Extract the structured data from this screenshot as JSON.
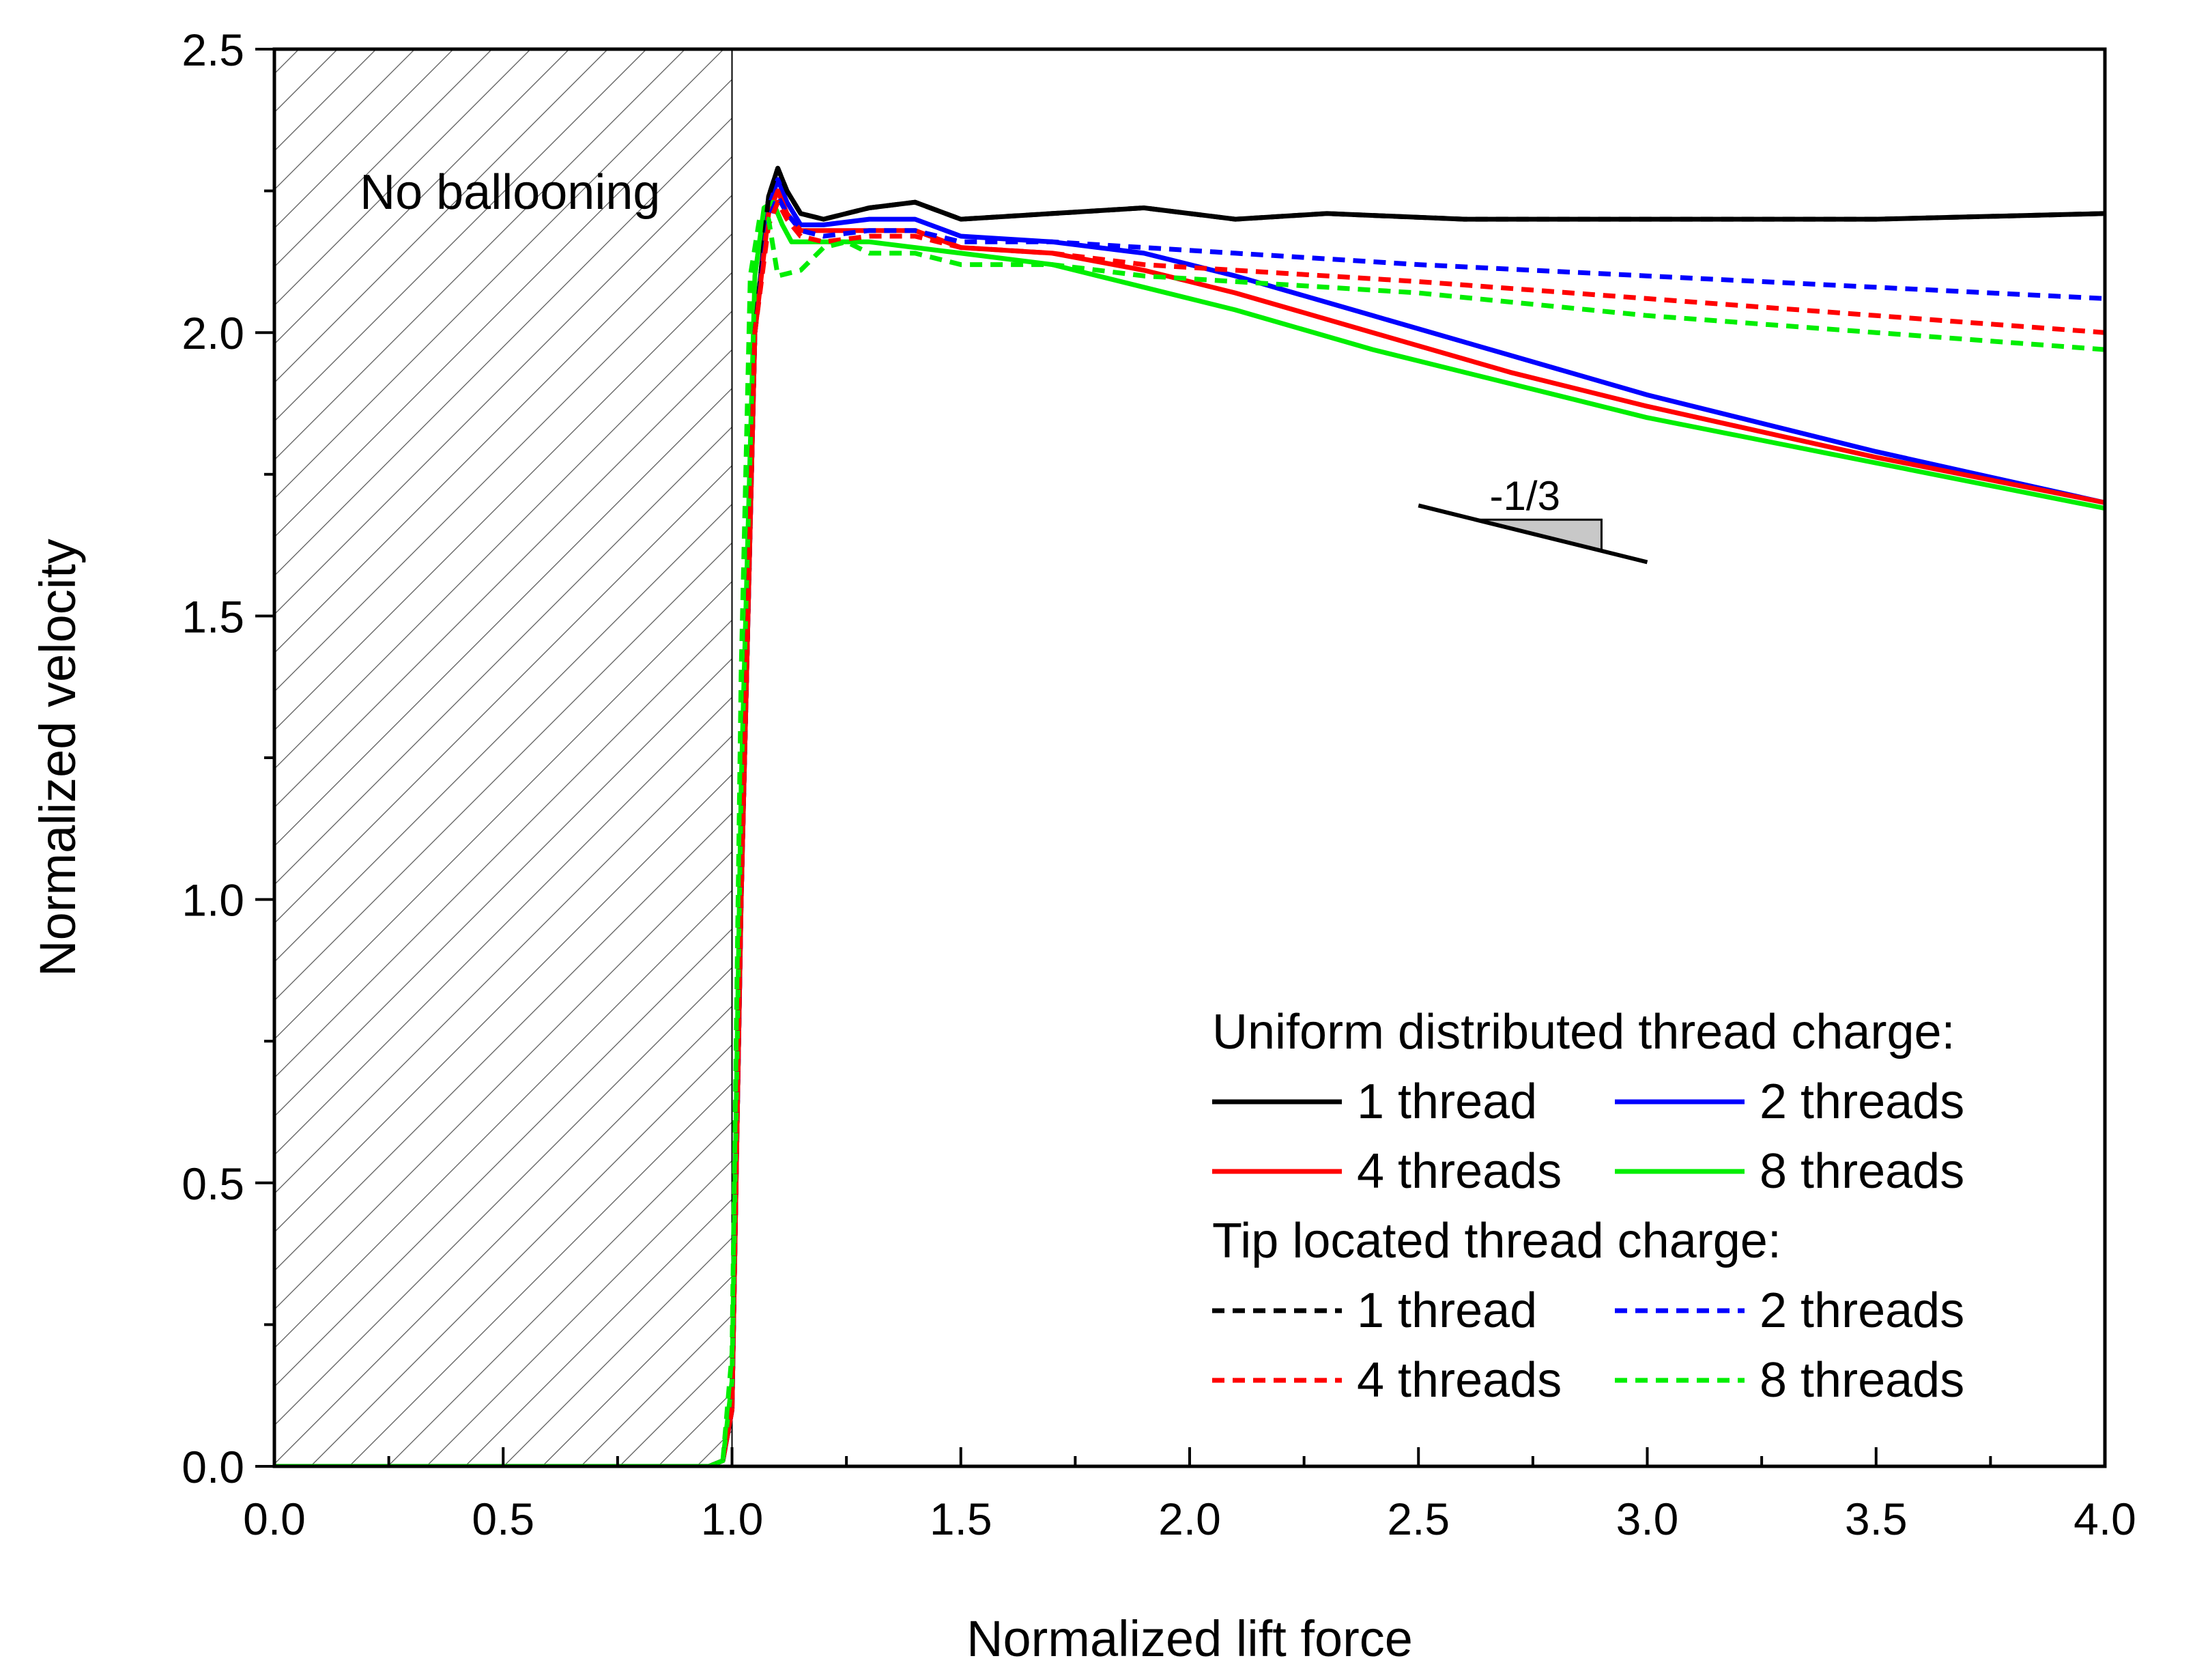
{
  "chart_data": {
    "type": "line",
    "title": "",
    "xlabel": "Normalized lift force",
    "ylabel": "Normalized velocity",
    "xlim": [
      0,
      4
    ],
    "ylim": [
      0,
      2.5
    ],
    "x_ticks": [
      0,
      0.5,
      1,
      1.5,
      2,
      2.5,
      3,
      3.5,
      4
    ],
    "x_tick_labels": [
      "0.0",
      "0.5",
      "1.0",
      "1.5",
      "2.0",
      "2.5",
      "3.0",
      "3.5",
      "4.0"
    ],
    "y_ticks": [
      0,
      0.5,
      1,
      1.5,
      2,
      2.5
    ],
    "y_tick_labels": [
      "0.0",
      "0.5",
      "1.0",
      "1.5",
      "2.0",
      "2.5"
    ],
    "grid": false,
    "shaded_region": {
      "x": [
        0,
        1
      ],
      "label": "No ballooning",
      "pattern": "diagonal hatch"
    },
    "slope_annotation": {
      "label": "-1/3",
      "x": [
        2.5,
        3.0
      ],
      "y": [
        1.695,
        1.595
      ],
      "triangle": {
        "x0": 2.62,
        "x1": 2.9,
        "y_top": 1.67
      }
    },
    "legend": {
      "position": "bottom-right",
      "groups": [
        {
          "title": "Uniform distributed thread charge:",
          "entries": [
            "1 thread",
            "2 threads",
            "4 threads",
            "8 threads"
          ]
        },
        {
          "title": "Tip located thread charge:",
          "entries": [
            "1 thread",
            "2 threads",
            "4 threads",
            "8 threads"
          ]
        }
      ]
    },
    "series": [
      {
        "name": "Uniform 1 thread",
        "group": "Uniform distributed thread charge",
        "color": "#000000",
        "dash": "solid",
        "x": [
          0,
          0.95,
          0.98,
          1.0,
          1.02,
          1.05,
          1.08,
          1.1,
          1.12,
          1.15,
          1.2,
          1.3,
          1.4,
          1.5,
          1.7,
          1.9,
          2.1,
          2.3,
          2.6,
          3.0,
          3.5,
          4.0
        ],
        "y": [
          0,
          0,
          0.01,
          0.1,
          1.0,
          2.0,
          2.24,
          2.29,
          2.25,
          2.21,
          2.2,
          2.22,
          2.23,
          2.2,
          2.21,
          2.22,
          2.2,
          2.21,
          2.2,
          2.2,
          2.2,
          2.21
        ]
      },
      {
        "name": "Uniform 2 threads",
        "group": "Uniform distributed thread charge",
        "color": "#0000ff",
        "dash": "solid",
        "x": [
          0,
          0.95,
          0.98,
          1.0,
          1.02,
          1.05,
          1.08,
          1.1,
          1.12,
          1.15,
          1.2,
          1.3,
          1.4,
          1.5,
          1.7,
          1.9,
          2.1,
          2.4,
          2.7,
          3.0,
          3.5,
          4.0
        ],
        "y": [
          0,
          0,
          0.01,
          0.1,
          1.0,
          2.0,
          2.22,
          2.27,
          2.23,
          2.19,
          2.19,
          2.2,
          2.2,
          2.17,
          2.16,
          2.14,
          2.1,
          2.03,
          1.96,
          1.89,
          1.79,
          1.7
        ]
      },
      {
        "name": "Uniform 4 threads",
        "group": "Uniform distributed thread charge",
        "color": "#ff0000",
        "dash": "solid",
        "x": [
          0,
          0.95,
          0.98,
          1.0,
          1.02,
          1.05,
          1.08,
          1.1,
          1.12,
          1.15,
          1.2,
          1.3,
          1.4,
          1.5,
          1.7,
          1.9,
          2.1,
          2.4,
          2.7,
          3.0,
          3.5,
          4.0
        ],
        "y": [
          0,
          0,
          0.01,
          0.1,
          1.0,
          2.0,
          2.21,
          2.25,
          2.21,
          2.18,
          2.18,
          2.18,
          2.18,
          2.15,
          2.14,
          2.11,
          2.07,
          2.0,
          1.93,
          1.87,
          1.78,
          1.7
        ]
      },
      {
        "name": "Uniform 8 threads",
        "group": "Uniform distributed thread charge",
        "color": "#00ee00",
        "dash": "solid",
        "x": [
          0,
          0.95,
          0.98,
          1.0,
          1.02,
          1.05,
          1.07,
          1.09,
          1.11,
          1.13,
          1.15,
          1.2,
          1.3,
          1.4,
          1.5,
          1.7,
          1.9,
          2.1,
          2.4,
          2.7,
          3.0,
          3.5,
          4.0
        ],
        "y": [
          0,
          0,
          0.01,
          0.15,
          1.2,
          2.1,
          2.22,
          2.23,
          2.19,
          2.16,
          2.16,
          2.16,
          2.16,
          2.15,
          2.14,
          2.12,
          2.08,
          2.04,
          1.97,
          1.91,
          1.85,
          1.77,
          1.69
        ]
      },
      {
        "name": "Tip 1 thread",
        "group": "Tip located thread charge",
        "color": "#000000",
        "dash": "dashed",
        "x": [
          0,
          0.95,
          0.98,
          1.0,
          1.02,
          1.05,
          1.08,
          1.1,
          1.12,
          1.15,
          1.2,
          1.3,
          1.4,
          1.5,
          1.7,
          1.9,
          2.1,
          2.3,
          2.6,
          3.0,
          3.5,
          4.0
        ],
        "y": [
          0,
          0,
          0.01,
          0.1,
          1.0,
          2.0,
          2.24,
          2.29,
          2.25,
          2.21,
          2.2,
          2.22,
          2.23,
          2.2,
          2.21,
          2.22,
          2.2,
          2.21,
          2.2,
          2.2,
          2.2,
          2.21
        ]
      },
      {
        "name": "Tip 2 threads",
        "group": "Tip located thread charge",
        "color": "#0000ff",
        "dash": "dashed",
        "x": [
          0,
          0.95,
          0.98,
          1.0,
          1.02,
          1.05,
          1.08,
          1.1,
          1.12,
          1.15,
          1.2,
          1.3,
          1.4,
          1.5,
          1.7,
          1.9,
          2.1,
          2.5,
          3.0,
          3.5,
          4.0
        ],
        "y": [
          0,
          0,
          0.01,
          0.1,
          1.0,
          2.0,
          2.2,
          2.24,
          2.21,
          2.18,
          2.17,
          2.18,
          2.18,
          2.16,
          2.16,
          2.15,
          2.14,
          2.12,
          2.1,
          2.08,
          2.06
        ]
      },
      {
        "name": "Tip 4 threads",
        "group": "Tip located thread charge",
        "color": "#ff0000",
        "dash": "dashed",
        "x": [
          0,
          0.95,
          0.98,
          1.0,
          1.02,
          1.05,
          1.08,
          1.1,
          1.12,
          1.15,
          1.2,
          1.3,
          1.4,
          1.5,
          1.7,
          1.9,
          2.1,
          2.5,
          3.0,
          3.5,
          4.0
        ],
        "y": [
          0,
          0,
          0.01,
          0.1,
          1.0,
          2.0,
          2.19,
          2.23,
          2.2,
          2.17,
          2.16,
          2.17,
          2.17,
          2.15,
          2.14,
          2.12,
          2.11,
          2.09,
          2.06,
          2.03,
          2.0
        ]
      },
      {
        "name": "Tip 8 threads",
        "group": "Tip located thread charge",
        "color": "#00ee00",
        "dash": "dashed",
        "x": [
          0,
          0.95,
          0.98,
          1.0,
          1.02,
          1.04,
          1.06,
          1.08,
          1.1,
          1.15,
          1.2,
          1.25,
          1.3,
          1.4,
          1.5,
          1.7,
          1.9,
          2.1,
          2.5,
          3.0,
          3.5,
          4.0
        ],
        "y": [
          0,
          0,
          0.01,
          0.2,
          1.4,
          2.1,
          2.2,
          2.2,
          2.1,
          2.11,
          2.15,
          2.16,
          2.14,
          2.14,
          2.12,
          2.12,
          2.1,
          2.09,
          2.07,
          2.03,
          2.0,
          1.97
        ]
      }
    ]
  }
}
